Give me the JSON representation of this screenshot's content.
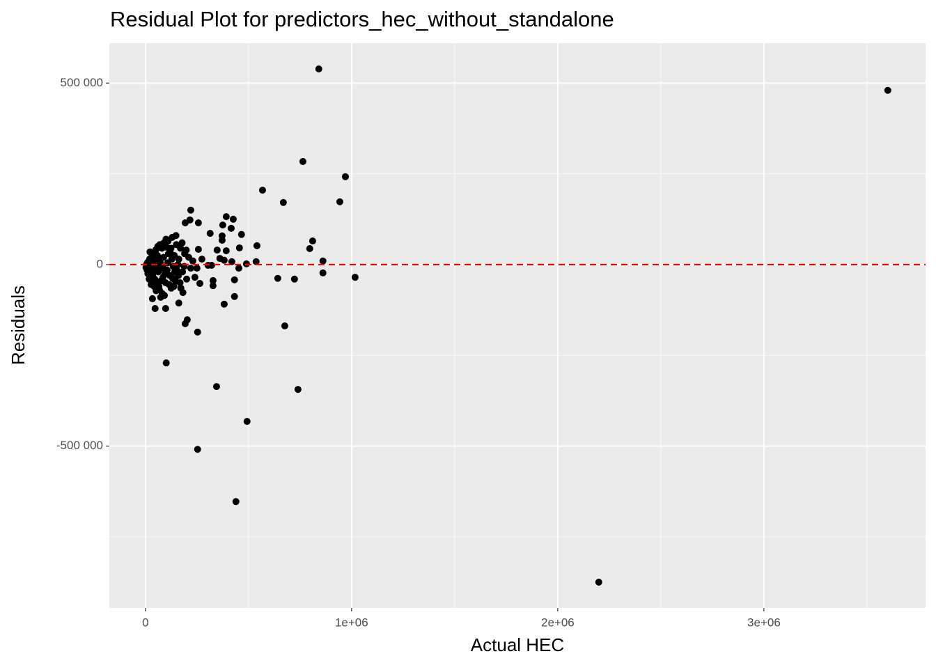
{
  "chart_data": {
    "type": "scatter",
    "title": "Residual Plot for predictors_hec_without_standalone",
    "x_label": "Actual HEC",
    "y_label": "Residuals",
    "color": "#000000",
    "x": [
      841000,
      3601000,
      764000,
      970000,
      568000,
      669000,
      943000,
      811000,
      797000,
      541000,
      537000,
      861000,
      861000,
      1017000,
      642000,
      723000,
      676000,
      740000,
      493000,
      345000,
      253000,
      439000,
      2199000,
      101000,
      253000,
      193000,
      203000,
      47000,
      98000,
      162000,
      382000,
      432000,
      432000,
      453000,
      490000,
      419000,
      392000,
      456000,
      466000,
      416000,
      426000,
      392000,
      375000,
      372000,
      372000,
      348000,
      361000,
      382000,
      314000,
      220000,
      216000,
      257000,
      328000,
      328000,
      264000,
      182000,
      250000,
      304000,
      321000,
      274000,
      257000,
      193000,
      74000,
      34000,
      5000,
      10000,
      15000,
      20000,
      25000,
      30000,
      35000,
      40000,
      45000,
      50000,
      55000,
      60000,
      65000,
      70000,
      75000,
      80000,
      85000,
      90000,
      95000,
      100000,
      105000,
      110000,
      115000,
      120000,
      125000,
      130000,
      135000,
      140000,
      145000,
      150000,
      160000,
      170000,
      180000,
      190000,
      200000,
      210000,
      220000,
      230000,
      240000,
      12000,
      18000,
      28000,
      22000,
      38000,
      48000,
      58000,
      68000,
      78000,
      88000,
      98000,
      108000,
      118000,
      128000,
      138000,
      148000,
      158000,
      168000,
      178000,
      188000,
      198000,
      8000,
      3000,
      14000,
      26000,
      44000,
      62000,
      72000,
      92000,
      82000,
      52000,
      42000,
      112000,
      124000,
      142000,
      162000,
      172000,
      54000,
      66000,
      86000,
      102000,
      132000,
      152000
    ],
    "values": [
      539000,
      480000,
      284000,
      242000,
      205000,
      171000,
      173000,
      65000,
      44000,
      52000,
      8000,
      10000,
      -23000,
      -35000,
      -38000,
      -40000,
      -169000,
      -344000,
      -432000,
      -336000,
      -509000,
      -653000,
      -875000,
      -271000,
      -186000,
      -163000,
      -152000,
      -121000,
      -121000,
      -106000,
      -109000,
      -88000,
      -42000,
      -10000,
      2000,
      8000,
      38000,
      46000,
      83000,
      100000,
      125000,
      132000,
      109000,
      79000,
      67000,
      40000,
      17000,
      12000,
      86000,
      150000,
      123000,
      115000,
      -58000,
      -44000,
      -52000,
      -77000,
      -10000,
      -2000,
      -2000,
      15000,
      42000,
      115000,
      -90000,
      -94000,
      0,
      5000,
      -10000,
      15000,
      -20000,
      20000,
      -30000,
      30000,
      -40000,
      40000,
      -50000,
      50000,
      -60000,
      55000,
      -45000,
      45000,
      -35000,
      60000,
      -25000,
      70000,
      -15000,
      65000,
      -55000,
      35000,
      -65000,
      75000,
      -5000,
      25000,
      -45000,
      55000,
      -30000,
      45000,
      -20000,
      30000,
      -40000,
      20000,
      -10000,
      10000,
      -35000,
      -25000,
      -40000,
      -55000,
      35000,
      10000,
      -15000,
      25000,
      -70000,
      -10000,
      20000,
      -50000,
      5000,
      -30000,
      15000,
      -60000,
      80000,
      0,
      -50000,
      60000,
      -5000,
      40000,
      -15000,
      -8000,
      8000,
      0,
      -5000,
      -20000,
      5000,
      -85000,
      -80000,
      -72000,
      -60000,
      30000,
      45000,
      -20000,
      15000,
      -65000,
      -5000,
      12000,
      -8000,
      48000,
      -38000,
      -15000
    ],
    "xlim": [
      -175000,
      3784000
    ],
    "xticks": [
      0,
      {
        "value": 1000000,
        "label": "1e+06"
      },
      {
        "value": 2000000,
        "label": "2e+06"
      },
      {
        "value": 3000000,
        "label": "3e+06"
      }
    ],
    "x_minor_ticks": [
      500000,
      1500000,
      2500000,
      3500000
    ],
    "ylim": [
      -946000,
      610000
    ],
    "yticks": [
      {
        "value": -500000,
        "label": "-500 000"
      },
      0,
      {
        "value": 500000,
        "label": "500 000"
      }
    ],
    "y_minor_ticks": [
      -750000,
      -250000,
      250000
    ],
    "hline": {
      "value": 0,
      "color": "#ff0000"
    },
    "grid": true
  }
}
